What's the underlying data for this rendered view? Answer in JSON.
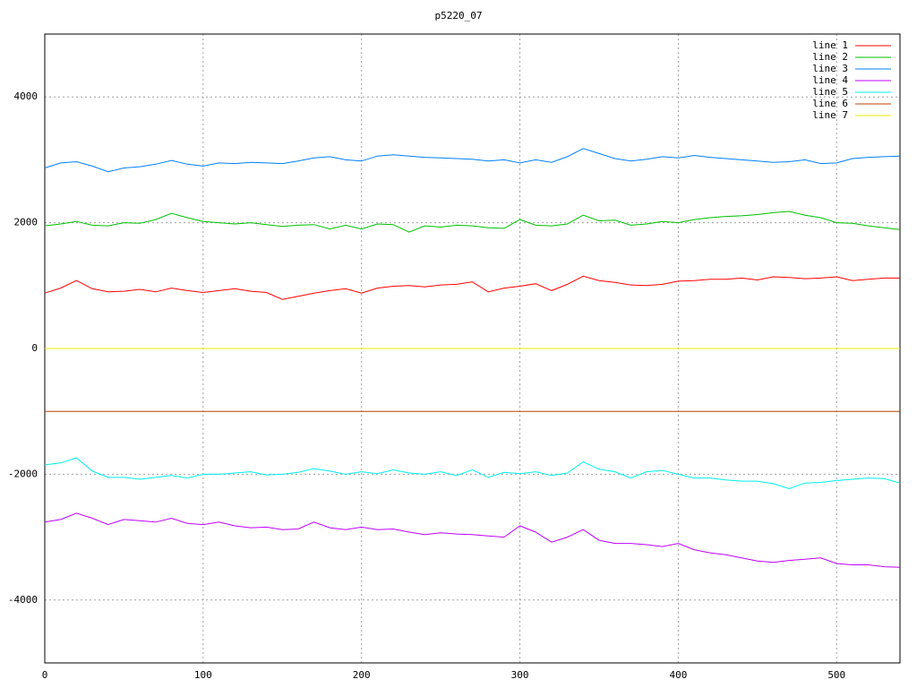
{
  "chart_data": {
    "type": "line",
    "title": "p5220_07",
    "x": [
      0,
      10,
      20,
      30,
      40,
      50,
      60,
      70,
      80,
      90,
      100,
      110,
      120,
      130,
      140,
      150,
      160,
      170,
      180,
      190,
      200,
      210,
      220,
      230,
      240,
      250,
      260,
      270,
      280,
      290,
      300,
      310,
      320,
      330,
      340,
      350,
      360,
      370,
      380,
      390,
      400,
      410,
      420,
      430,
      440,
      450,
      460,
      470,
      480,
      490,
      500,
      510,
      520,
      530,
      540
    ],
    "series": [
      {
        "name": "line 1",
        "color": "#ff0000",
        "values": [
          880,
          960,
          1080,
          950,
          900,
          910,
          940,
          900,
          960,
          920,
          890,
          920,
          950,
          910,
          890,
          780,
          830,
          880,
          920,
          950,
          880,
          960,
          990,
          1000,
          980,
          1010,
          1020,
          1060,
          900,
          960,
          990,
          1030,
          920,
          1020,
          1150,
          1080,
          1050,
          1010,
          1000,
          1020,
          1070,
          1080,
          1100,
          1100,
          1120,
          1090,
          1140,
          1130,
          1110,
          1120,
          1140,
          1080,
          1100,
          1120,
          1120
        ]
      },
      {
        "name": "line 2",
        "color": "#00c000",
        "values": [
          1950,
          1980,
          2020,
          1960,
          1950,
          2000,
          1990,
          2050,
          2150,
          2080,
          2020,
          2000,
          1980,
          2000,
          1970,
          1940,
          1960,
          1970,
          1900,
          1960,
          1900,
          1980,
          1970,
          1850,
          1950,
          1930,
          1960,
          1950,
          1920,
          1910,
          2050,
          1960,
          1950,
          1980,
          2120,
          2030,
          2040,
          1960,
          1980,
          2020,
          2000,
          2050,
          2080,
          2100,
          2110,
          2130,
          2160,
          2180,
          2120,
          2080,
          2000,
          1990,
          1950,
          1920,
          1890
        ]
      },
      {
        "name": "line 3",
        "color": "#0080ff",
        "values": [
          2870,
          2950,
          2970,
          2900,
          2810,
          2870,
          2890,
          2930,
          2990,
          2930,
          2900,
          2950,
          2940,
          2960,
          2950,
          2940,
          2980,
          3030,
          3050,
          3000,
          2980,
          3060,
          3080,
          3060,
          3040,
          3030,
          3020,
          3010,
          2980,
          3000,
          2950,
          3000,
          2960,
          3050,
          3180,
          3100,
          3020,
          2980,
          3010,
          3050,
          3030,
          3070,
          3040,
          3020,
          3000,
          2980,
          2960,
          2970,
          3000,
          2940,
          2950,
          3020,
          3040,
          3050,
          3060
        ]
      },
      {
        "name": "line 4",
        "color": "#c000ff",
        "values": [
          -2760,
          -2720,
          -2620,
          -2700,
          -2800,
          -2720,
          -2740,
          -2760,
          -2700,
          -2780,
          -2800,
          -2760,
          -2820,
          -2850,
          -2840,
          -2880,
          -2870,
          -2760,
          -2850,
          -2880,
          -2840,
          -2880,
          -2870,
          -2920,
          -2960,
          -2930,
          -2950,
          -2960,
          -2980,
          -3000,
          -2820,
          -2920,
          -3080,
          -3000,
          -2880,
          -3050,
          -3100,
          -3100,
          -3120,
          -3150,
          -3100,
          -3200,
          -3250,
          -3280,
          -3330,
          -3380,
          -3400,
          -3370,
          -3350,
          -3330,
          -3420,
          -3440,
          -3440,
          -3470,
          -3480
        ]
      },
      {
        "name": "line 5",
        "color": "#00eeee",
        "values": [
          -1850,
          -1820,
          -1740,
          -1950,
          -2050,
          -2050,
          -2080,
          -2050,
          -2020,
          -2060,
          -2000,
          -2000,
          -1980,
          -1960,
          -2010,
          -2000,
          -1970,
          -1910,
          -1950,
          -2000,
          -1960,
          -1990,
          -1930,
          -1980,
          -2000,
          -1960,
          -2020,
          -1930,
          -2050,
          -1970,
          -1990,
          -1960,
          -2020,
          -1980,
          -1800,
          -1920,
          -1960,
          -2060,
          -1960,
          -1940,
          -2000,
          -2060,
          -2060,
          -2090,
          -2110,
          -2110,
          -2150,
          -2230,
          -2140,
          -2130,
          -2100,
          -2080,
          -2060,
          -2070,
          -2140
        ]
      },
      {
        "name": "line 6",
        "color": "#c04000",
        "values": [
          -1000,
          -1000,
          -1000,
          -1000,
          -1000,
          -1000,
          -1000,
          -1000,
          -1000,
          -1000,
          -1000,
          -1000,
          -1000,
          -1000,
          -1000,
          -1000,
          -1000,
          -1000,
          -1000,
          -1000,
          -1000,
          -1000,
          -1000,
          -1000,
          -1000,
          -1000,
          -1000,
          -1000,
          -1000,
          -1000,
          -1000,
          -1000,
          -1000,
          -1000,
          -1000,
          -1000,
          -1000,
          -1000,
          -1000,
          -1000,
          -1000,
          -1000,
          -1000,
          -1000,
          -1000,
          -1000,
          -1000,
          -1000,
          -1000,
          -1000,
          -1000,
          -1000,
          -1000,
          -1000,
          -1000
        ]
      },
      {
        "name": "line 7",
        "color": "#eeee00",
        "values": [
          0,
          0,
          0,
          0,
          0,
          0,
          0,
          0,
          0,
          0,
          0,
          0,
          0,
          0,
          0,
          0,
          0,
          0,
          0,
          0,
          0,
          0,
          0,
          0,
          0,
          0,
          0,
          0,
          0,
          0,
          0,
          0,
          0,
          0,
          0,
          0,
          0,
          0,
          0,
          0,
          0,
          0,
          0,
          0,
          0,
          0,
          0,
          0,
          0,
          0,
          0,
          0,
          0,
          0,
          0
        ]
      }
    ],
    "xlim": [
      0,
      540
    ],
    "xticks": [
      0,
      100,
      200,
      300,
      400,
      500
    ],
    "ylim": [
      -5000,
      5000
    ],
    "yticks": [
      -4000,
      -2000,
      0,
      2000,
      4000
    ],
    "grid": true,
    "legend": "top-right"
  }
}
